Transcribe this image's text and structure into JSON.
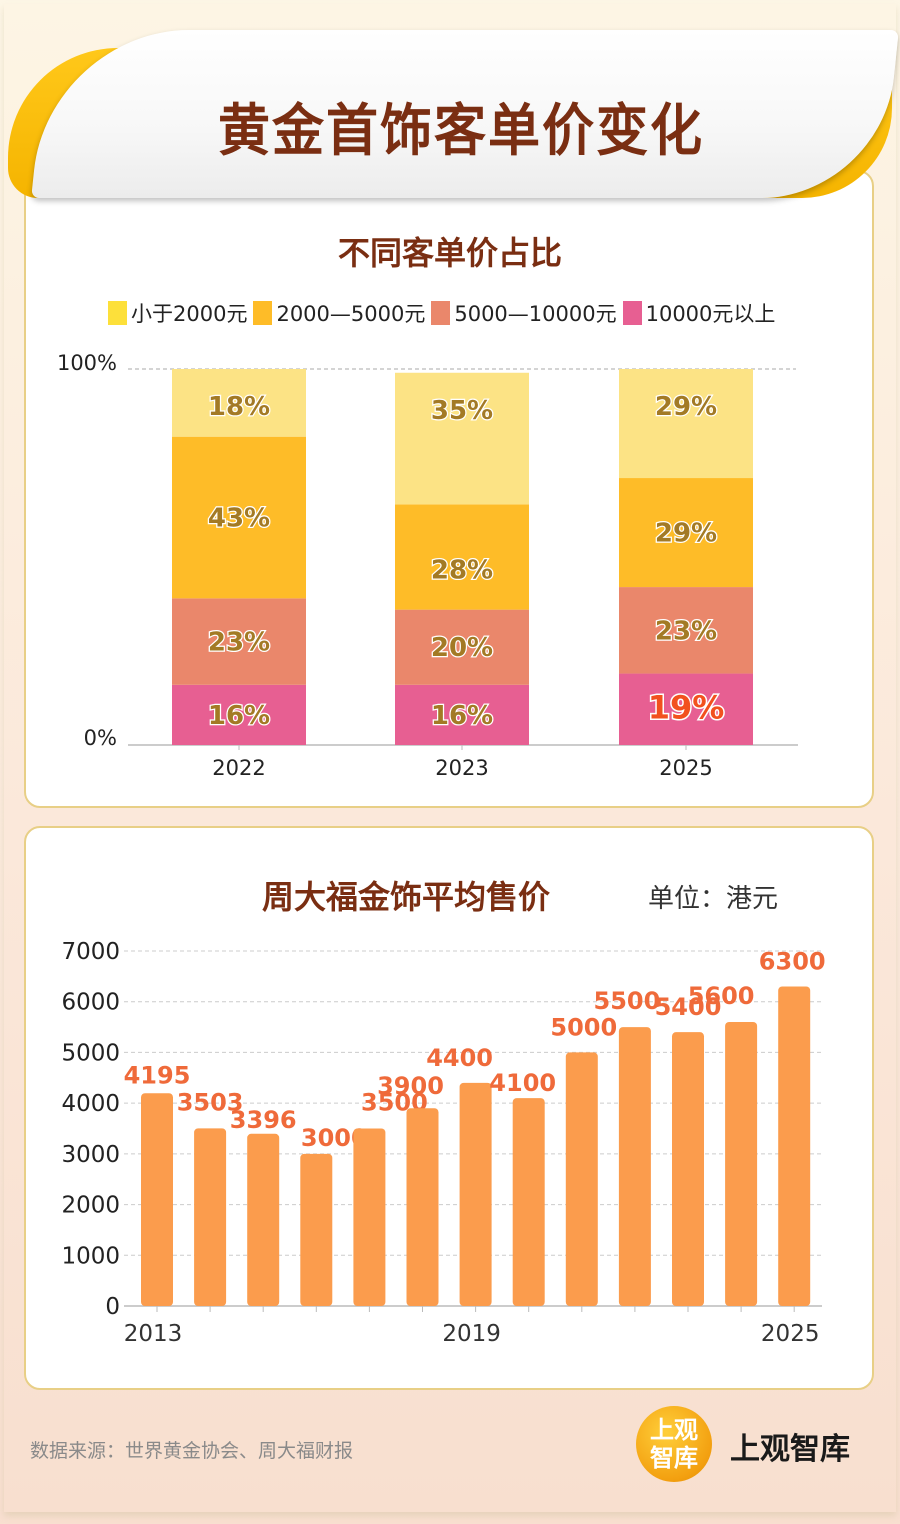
{
  "header": {
    "title": "黄金首饰客单价变化"
  },
  "chart_data": [
    {
      "type": "bar",
      "stacked": true,
      "title": "不同客单价占比",
      "categories": [
        "2022",
        "2023",
        "2025"
      ],
      "series": [
        {
          "name": "10000元以上",
          "color": "#e75f92",
          "values": [
            16,
            16,
            19
          ]
        },
        {
          "name": "5000—10000元",
          "color": "#ea876b",
          "values": [
            23,
            20,
            23
          ]
        },
        {
          "name": "2000—5000元",
          "color": "#febc28",
          "values": [
            43,
            28,
            29
          ]
        },
        {
          "name": "小于2000元",
          "color": "#fce385",
          "values": [
            18,
            35,
            29
          ]
        }
      ],
      "legend_order": [
        "小于2000元",
        "2000—5000元",
        "5000—10000元",
        "10000元以上"
      ],
      "legend_colors": [
        "#fde03a",
        "#febc28",
        "#ea876b",
        "#e75f92"
      ],
      "yticks": [
        "0%",
        "100%"
      ],
      "ylim": [
        0,
        100
      ],
      "legend_position": "top",
      "label_color": "#a37a25",
      "highlight_label_color": "#f2511e",
      "highlight": {
        "category": "2025",
        "series": "10000元以上"
      }
    },
    {
      "type": "bar",
      "title": "周大福金饰平均售价",
      "unit_label": "单位：港元",
      "x": [
        2013,
        2014,
        2015,
        2016,
        2017,
        2018,
        2019,
        2020,
        2021,
        2022,
        2023,
        2024,
        2025
      ],
      "values": [
        4195,
        3503,
        3396,
        3000,
        3500,
        3900,
        4400,
        4100,
        5000,
        5500,
        5400,
        5600,
        6300
      ],
      "value_labels": [
        "4195",
        "3503",
        "3396",
        "3000",
        "3500",
        "3900",
        "4400",
        "4100",
        "5000",
        "5500",
        "5400",
        "5600",
        "6300"
      ],
      "xtick_labels": {
        "2013": "2013",
        "2019": "2019",
        "2025": "2025"
      },
      "yticks": [
        0,
        1000,
        2000,
        3000,
        4000,
        5000,
        6000,
        7000
      ],
      "ylim": [
        0,
        7000
      ],
      "grid": true,
      "bar_color": "#fb9c4d",
      "label_color": "#ef6a3a"
    }
  ],
  "footer": {
    "source": "数据来源：世界黄金协会、周大福财报",
    "logo_circle_line1": "上观",
    "logo_circle_line2": "智库",
    "logo_text": "上观智库"
  }
}
